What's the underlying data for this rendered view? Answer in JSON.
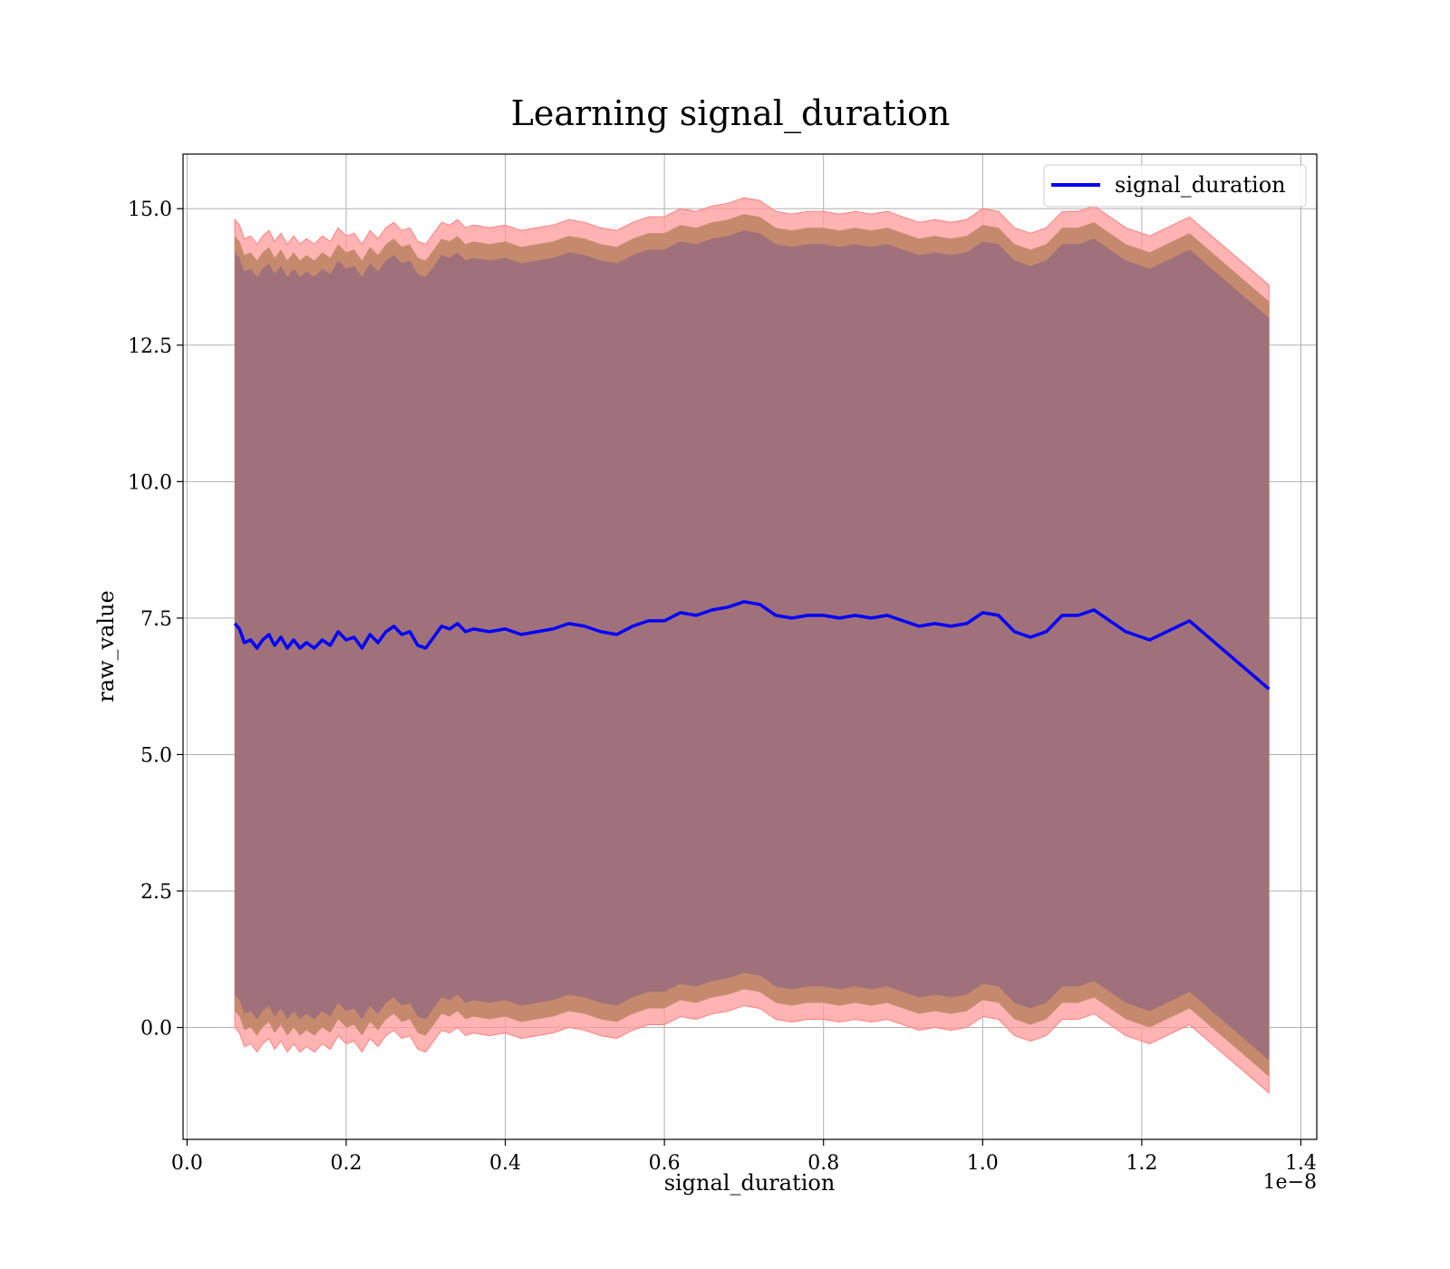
{
  "chart_data": {
    "type": "line",
    "title": "Learning signal_duration",
    "xlabel": "signal_duration",
    "ylabel": "raw_value",
    "x_offset_text": "1e−8",
    "x_scale": 1e-08,
    "xlim": [
      -0.005,
      1.42
    ],
    "ylim": [
      -2.05,
      16.0
    ],
    "xticks": [
      0.0,
      0.2,
      0.4,
      0.6,
      0.8,
      1.0,
      1.2,
      1.4
    ],
    "xtick_labels": [
      "0.0",
      "0.2",
      "0.4",
      "0.6",
      "0.8",
      "1.0",
      "1.2",
      "1.4"
    ],
    "yticks": [
      0.0,
      2.5,
      5.0,
      7.5,
      10.0,
      12.5,
      15.0
    ],
    "ytick_labels": [
      "0.0",
      "2.5",
      "5.0",
      "7.5",
      "10.0",
      "12.5",
      "15.0"
    ],
    "grid": true,
    "legend": {
      "position": "top-right",
      "entries": [
        "signal_duration"
      ]
    },
    "colors": {
      "line": "#0000ff",
      "band_outer": "#ff9a9a",
      "band_middle": "#c58a6e",
      "band_inner": "#a0717a",
      "grid": "#b0b0b0"
    },
    "band_widths": {
      "outer": 7.4,
      "middle": 7.1,
      "inner": 6.8
    },
    "series": [
      {
        "name": "signal_duration",
        "x": [
          0.06,
          0.066,
          0.072,
          0.08,
          0.088,
          0.095,
          0.103,
          0.11,
          0.118,
          0.126,
          0.134,
          0.142,
          0.15,
          0.16,
          0.17,
          0.18,
          0.19,
          0.2,
          0.21,
          0.22,
          0.23,
          0.24,
          0.25,
          0.26,
          0.27,
          0.28,
          0.29,
          0.3,
          0.31,
          0.32,
          0.33,
          0.34,
          0.35,
          0.36,
          0.38,
          0.4,
          0.42,
          0.44,
          0.46,
          0.48,
          0.5,
          0.52,
          0.54,
          0.56,
          0.58,
          0.6,
          0.62,
          0.64,
          0.66,
          0.68,
          0.7,
          0.72,
          0.74,
          0.76,
          0.78,
          0.8,
          0.82,
          0.84,
          0.86,
          0.88,
          0.9,
          0.92,
          0.94,
          0.96,
          0.98,
          1.0,
          1.02,
          1.04,
          1.06,
          1.08,
          1.1,
          1.12,
          1.14,
          1.18,
          1.21,
          1.26,
          1.36
        ],
        "y": [
          7.4,
          7.3,
          7.05,
          7.1,
          6.95,
          7.1,
          7.2,
          7.0,
          7.15,
          6.95,
          7.1,
          6.95,
          7.05,
          6.95,
          7.1,
          7.0,
          7.25,
          7.1,
          7.15,
          6.95,
          7.2,
          7.05,
          7.25,
          7.35,
          7.2,
          7.25,
          7.0,
          6.95,
          7.15,
          7.35,
          7.3,
          7.4,
          7.25,
          7.3,
          7.25,
          7.3,
          7.2,
          7.25,
          7.3,
          7.4,
          7.35,
          7.25,
          7.2,
          7.35,
          7.45,
          7.45,
          7.6,
          7.55,
          7.65,
          7.7,
          7.8,
          7.75,
          7.55,
          7.5,
          7.55,
          7.55,
          7.5,
          7.55,
          7.5,
          7.55,
          7.45,
          7.35,
          7.4,
          7.35,
          7.4,
          7.6,
          7.55,
          7.25,
          7.15,
          7.25,
          7.55,
          7.55,
          7.65,
          7.25,
          7.1,
          7.45,
          6.2
        ]
      }
    ]
  }
}
